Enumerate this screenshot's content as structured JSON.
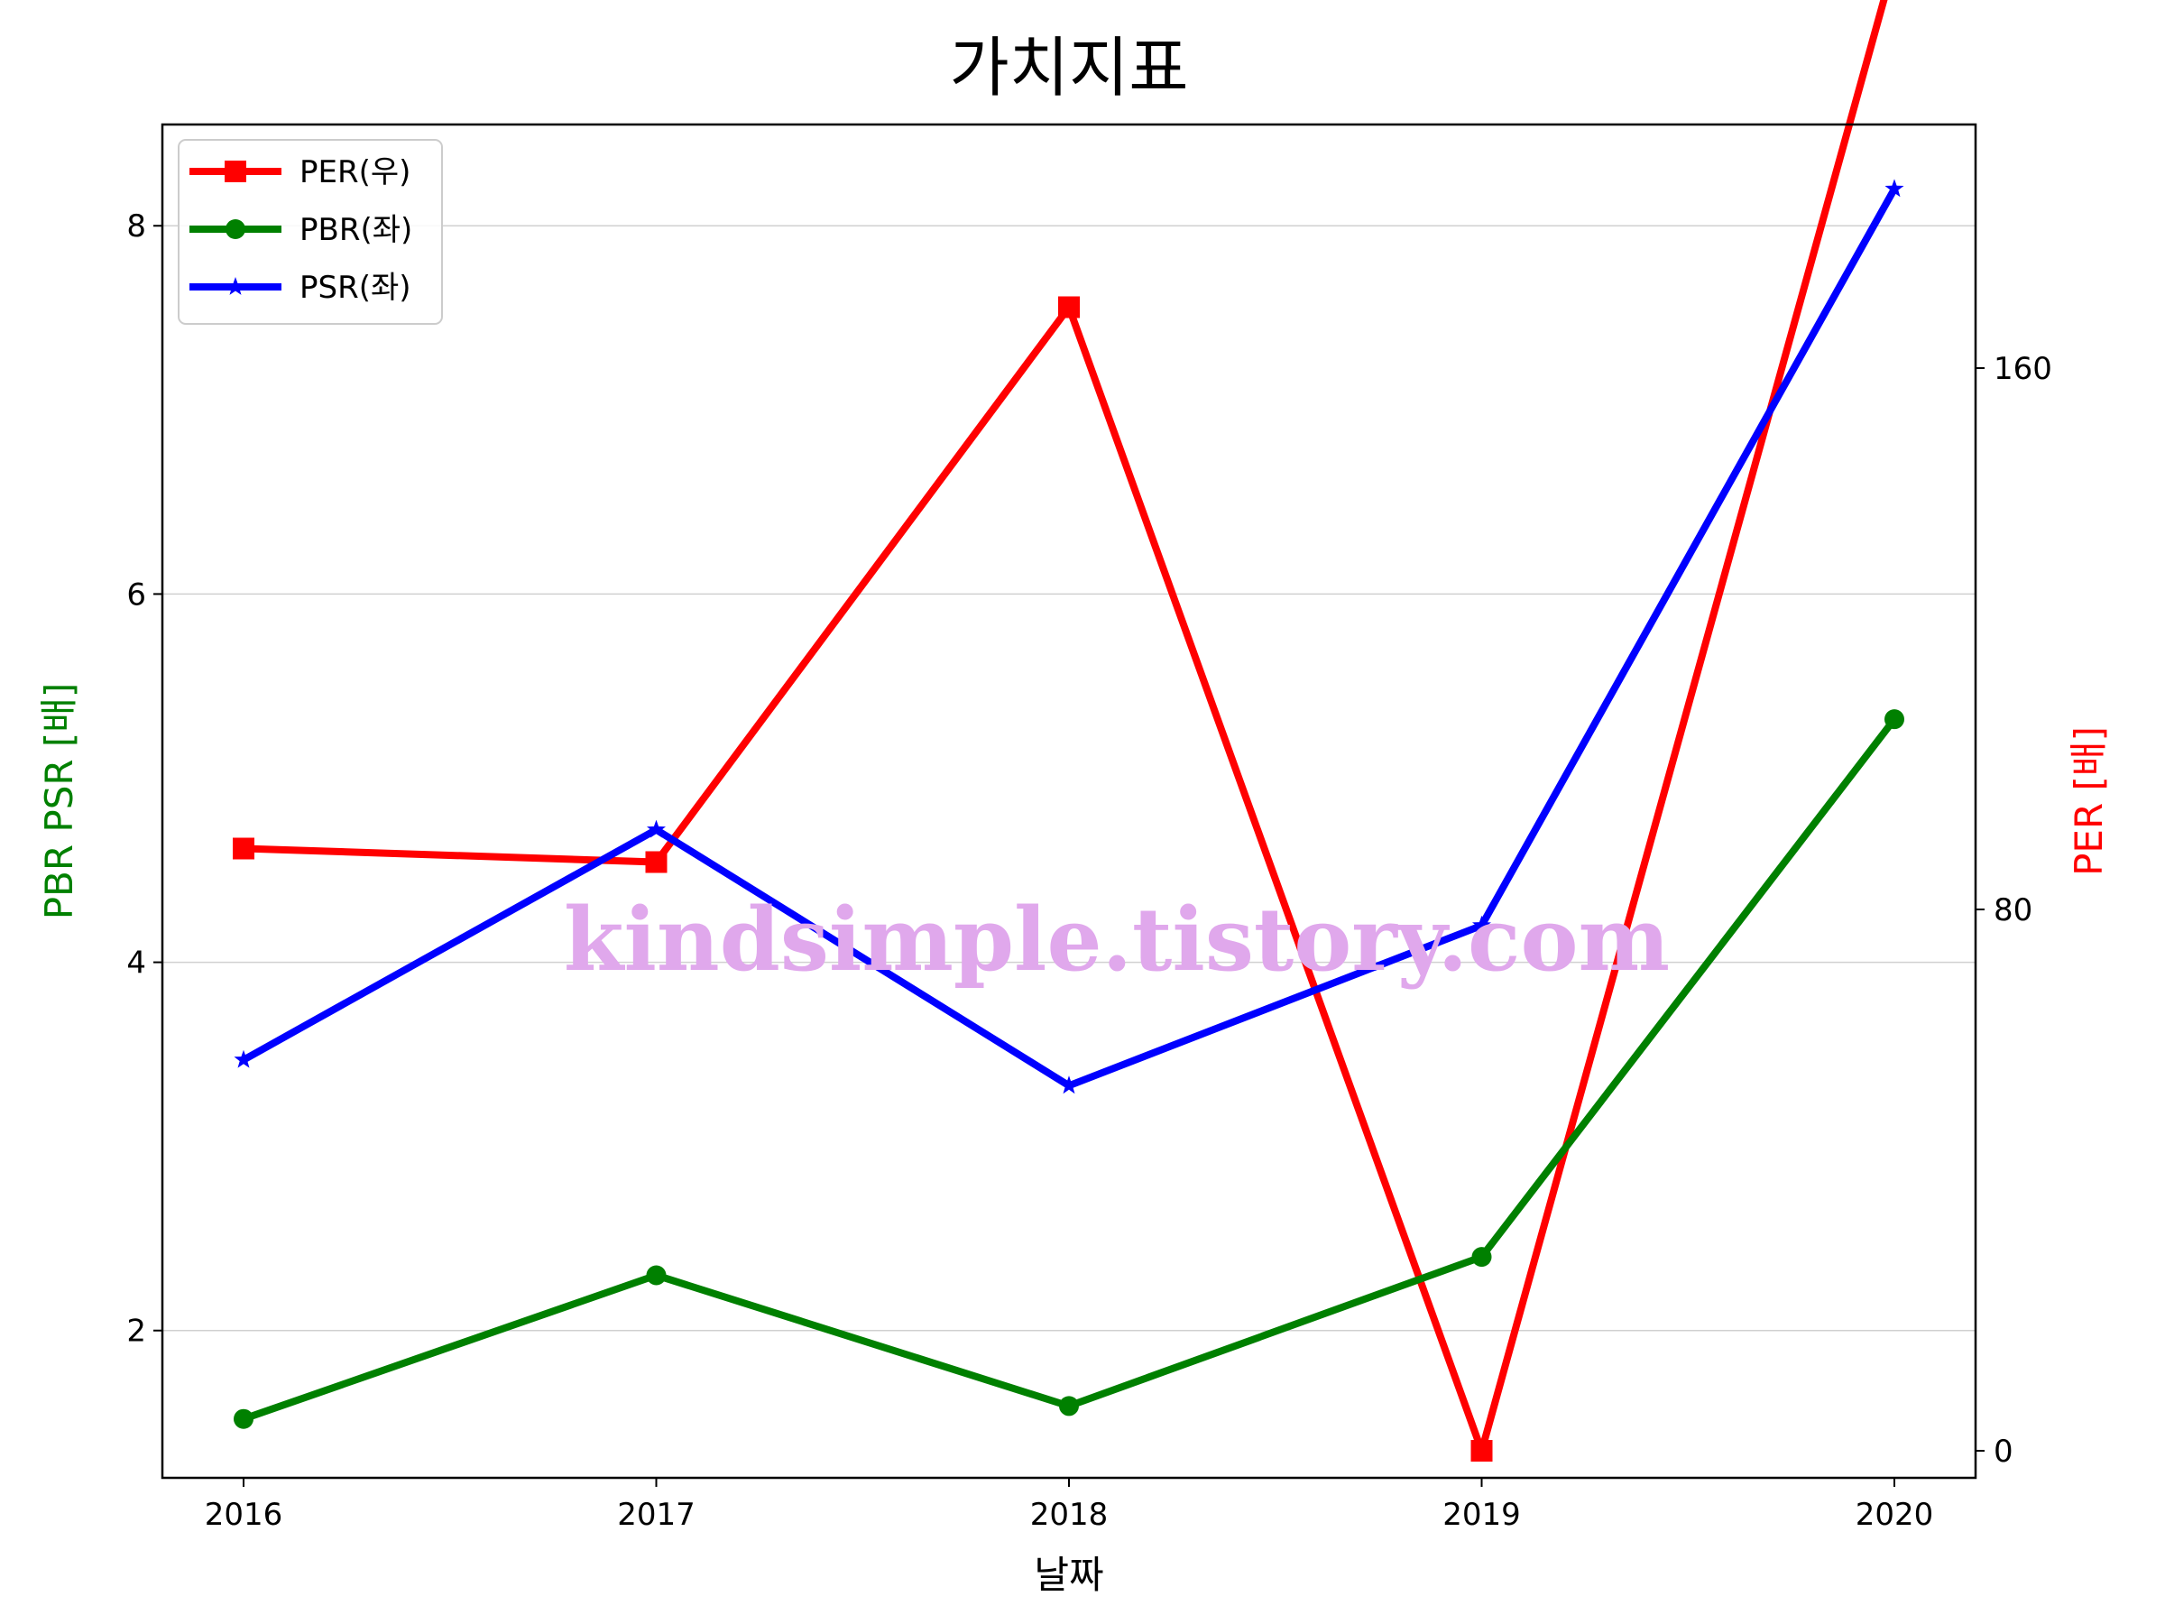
{
  "chart_data": {
    "type": "line",
    "title": "가치지표",
    "xlabel": "날짜",
    "ylabel_left": "PBR PSR [배]",
    "ylabel_right": "PER [배]",
    "categories": [
      "2016",
      "2017",
      "2018",
      "2019",
      "2020"
    ],
    "ylim_left": [
      1.2,
      8.55
    ],
    "ylim_right": [
      -4,
      196
    ],
    "yticks_left": [
      "2",
      "4",
      "6",
      "8"
    ],
    "yticks_right": [
      "0",
      "80",
      "160"
    ],
    "grid": "horizontal",
    "legend_position": "top-left",
    "series": [
      {
        "name": "PER(우)",
        "axis": "right",
        "color": "#ff0000",
        "marker": "square",
        "values": [
          89,
          87,
          169,
          0,
          220
        ]
      },
      {
        "name": "PBR(좌)",
        "axis": "left",
        "color": "#008000",
        "marker": "circle",
        "values": [
          1.52,
          2.3,
          1.59,
          2.4,
          5.32
        ]
      },
      {
        "name": "PSR(좌)",
        "axis": "left",
        "color": "#0000ff",
        "marker": "star",
        "values": [
          3.47,
          4.72,
          3.33,
          4.2,
          8.2
        ]
      }
    ],
    "watermark": "kindsimple.tistory.com"
  }
}
